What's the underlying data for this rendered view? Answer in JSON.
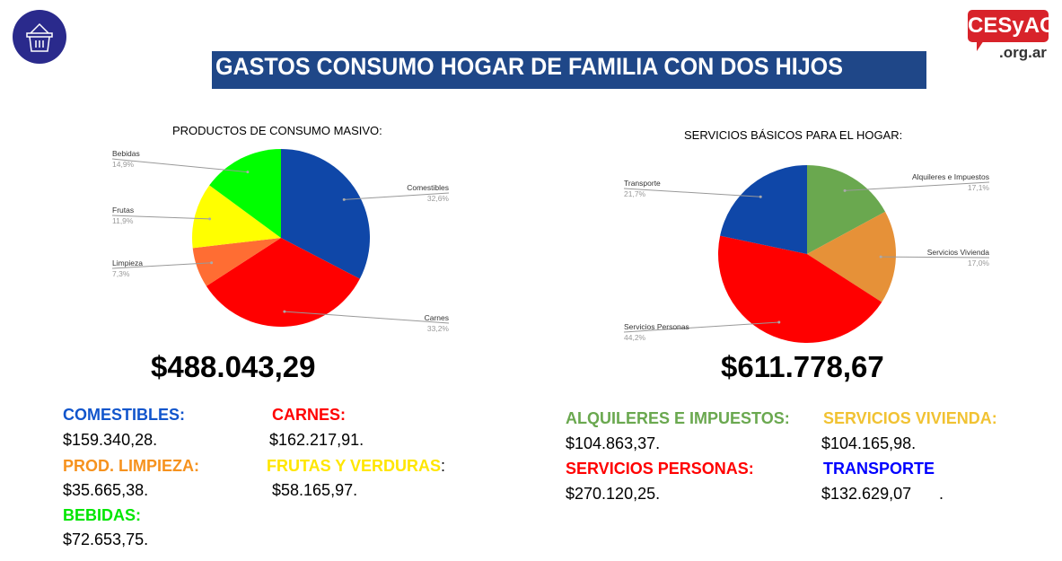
{
  "header": {
    "title": "GASTOS CONSUMO HOGAR DE FAMILIA CON DOS HIJOS",
    "logo_main": "CESyAC",
    "logo_sub": ".org.ar"
  },
  "chart_data": [
    {
      "type": "pie",
      "title": "PRODUCTOS DE CONSUMO MASIVO:",
      "slices": [
        {
          "label": "Comestibles",
          "value": 32.6,
          "pct": "32,6%",
          "color": "#0f47a8"
        },
        {
          "label": "Carnes",
          "value": 33.2,
          "pct": "33,2%",
          "color": "#ff0000"
        },
        {
          "label": "Limpieza",
          "value": 7.3,
          "pct": "7,3%",
          "color": "#ff6d33"
        },
        {
          "label": "Frutas",
          "value": 11.9,
          "pct": "11,9%",
          "color": "#ffff00"
        },
        {
          "label": "Bebidas",
          "value": 14.9,
          "pct": "14,9%",
          "color": "#00ff00"
        }
      ],
      "total": "$488.043,29"
    },
    {
      "type": "pie",
      "title": "SERVICIOS BÁSICOS PARA EL HOGAR:",
      "slices": [
        {
          "label": "Alquileres e Impuestos",
          "value": 17.1,
          "pct": "17,1%",
          "color": "#6aa84f"
        },
        {
          "label": "Servicios Vivienda",
          "value": 17.0,
          "pct": "17,0%",
          "color": "#e69138"
        },
        {
          "label": "Servicios Personas",
          "value": 44.2,
          "pct": "44,2%",
          "color": "#ff0000"
        },
        {
          "label": "Transporte",
          "value": 21.7,
          "pct": "21,7%",
          "color": "#0f47a8"
        }
      ],
      "total": "$611.778,67"
    }
  ],
  "breakdown_left": [
    {
      "label": "COMESTIBLES:",
      "value": "$159.340,28.",
      "color": "#1155cc"
    },
    {
      "label": "CARNES:",
      "value": "$162.217,91.",
      "color": "#ff0000"
    },
    {
      "label": "PROD. LIMPIEZA:",
      "value": "$35.665,38.",
      "color": "#f6921e"
    },
    {
      "label": "FRUTAS Y VERDURAS",
      "suffix": ":",
      "value": "$58.165,97.",
      "color": "#ffe600"
    },
    {
      "label": "BEBIDAS:",
      "value": "$72.653,75.",
      "color": "#00e600"
    }
  ],
  "breakdown_right": [
    {
      "label": "ALQUILERES E IMPUESTOS:",
      "value": "$104.863,37.",
      "color": "#6aa84f"
    },
    {
      "label": "SERVICIOS VIVIENDA:",
      "value": "$104.165,98.",
      "color": "#f1c232"
    },
    {
      "label": "SERVICIOS PERSONAS:",
      "value": "$270.120,25.",
      "color": "#ff0000"
    },
    {
      "label": "TRANSPORTE",
      "value": "$132.629,07",
      "suffix": ".",
      "color": "#0000ff"
    }
  ]
}
